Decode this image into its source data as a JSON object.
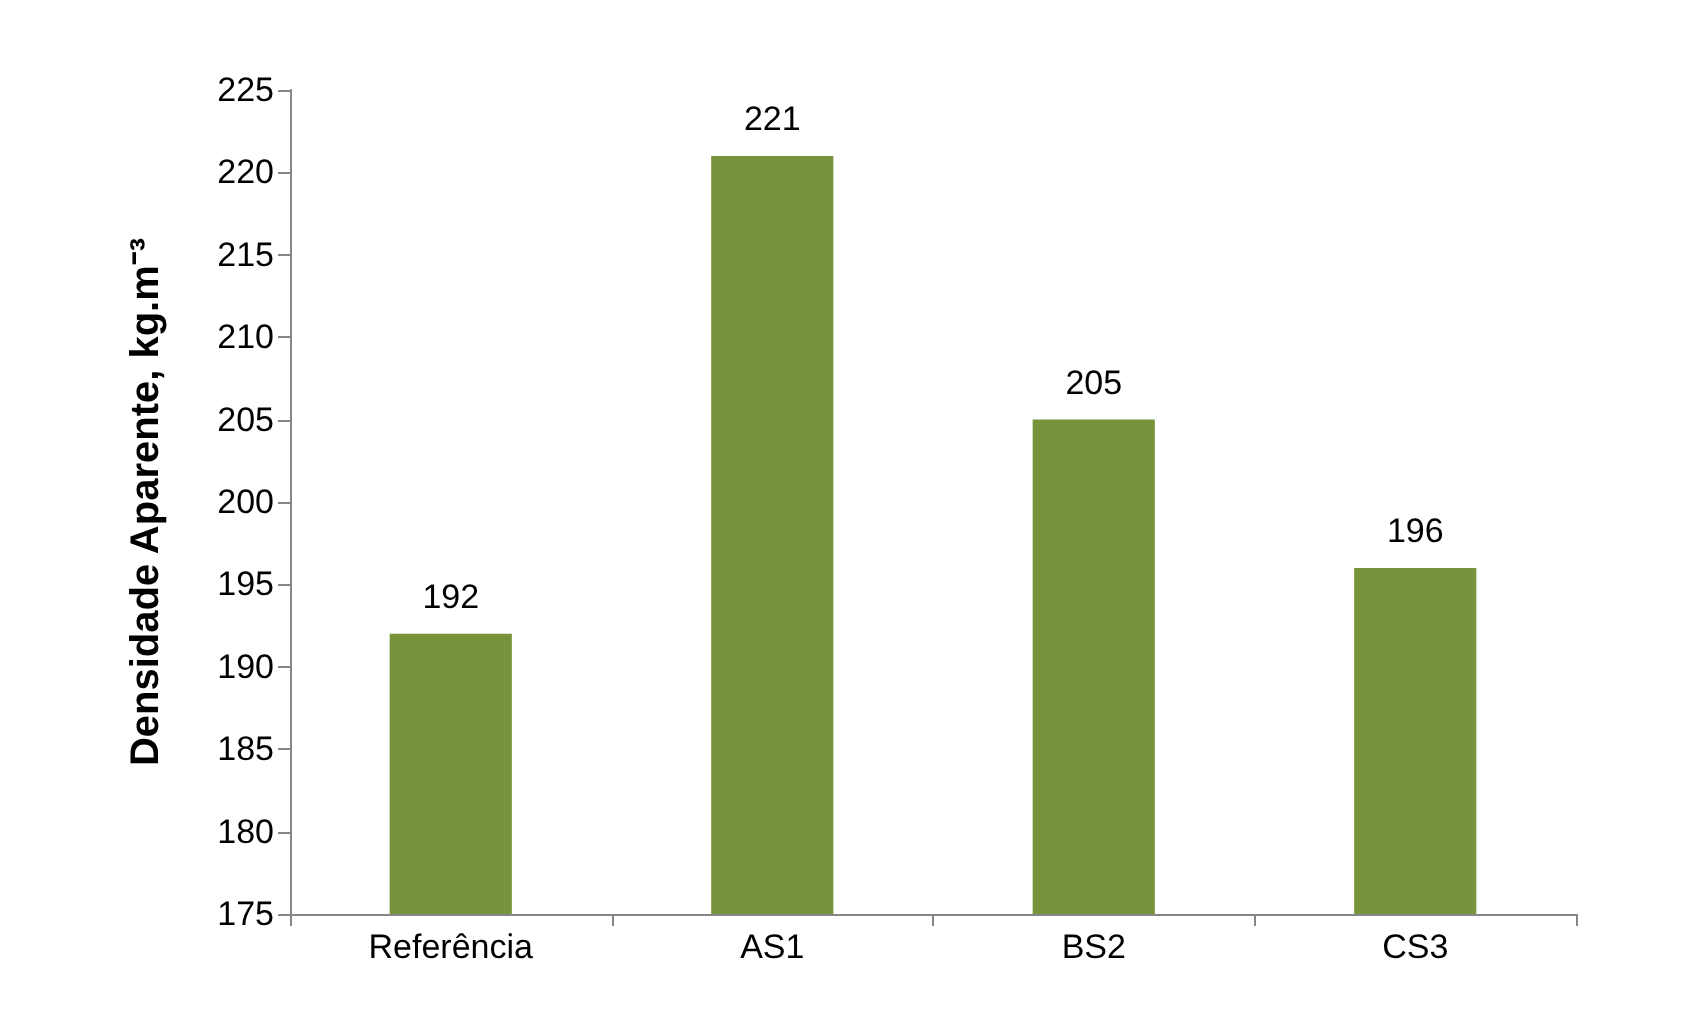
{
  "chart_data": {
    "type": "bar",
    "ylabel": "Densidade Aparente, kg.m⁻³",
    "categories": [
      "Referência",
      "AS1",
      "BS2",
      "CS3"
    ],
    "values": [
      192,
      221,
      205,
      196
    ],
    "color": "#77933c",
    "ylim": [
      175,
      225
    ],
    "yticks": [
      175,
      180,
      185,
      190,
      195,
      200,
      205,
      210,
      215,
      220,
      225
    ],
    "grid": false,
    "data_labels": true
  }
}
